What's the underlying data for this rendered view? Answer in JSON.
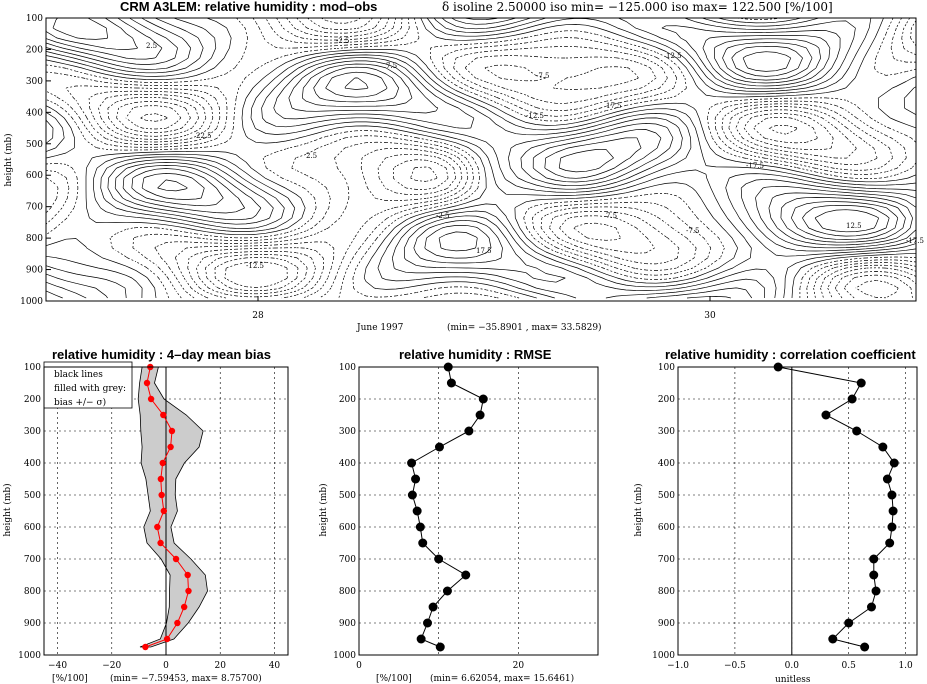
{
  "chart_data": [
    {
      "type": "heatmap",
      "panel": "contour",
      "title": "CRM A3LEM: relative humidity : mod–obs",
      "subtitle": "δ isoline 2.50000   iso min= −125.000   iso max= 122.500 [%/100]",
      "xlabel": "June 1997",
      "stats": "(min= −35.8901 , max= 33.5829)",
      "ylabel": "height (mb)",
      "ylim": [
        1000,
        100
      ],
      "x_ticks": [
        "28",
        "30"
      ],
      "y_ticks": [
        "100",
        "200",
        "300",
        "400",
        "500",
        "600",
        "700",
        "800",
        "900",
        "1000"
      ],
      "contour_labels": [
        "2.5",
        "-2.5",
        "7.5",
        "-7.5",
        "12.5",
        "-12.5",
        "17.5",
        "-17.5",
        "22.5"
      ]
    },
    {
      "type": "line",
      "panel": "bias",
      "title": "relative humidity : 4–day mean bias",
      "xlabel": "[%/100]",
      "stats": "(min=    −7.59453, max=    8.75700)",
      "ylabel": "height (mb)",
      "xlim": [
        -45,
        45
      ],
      "ylim": [
        1000,
        100
      ],
      "x_ticks": [
        -40,
        -20,
        0,
        20,
        40
      ],
      "y_ticks": [
        100,
        200,
        300,
        400,
        500,
        600,
        700,
        800,
        900,
        1000
      ],
      "legend": [
        "black lines",
        "filled with grey:",
        "bias +/− σ)"
      ],
      "grid": true,
      "pressure": [
        100,
        150,
        200,
        250,
        300,
        350,
        400,
        450,
        500,
        550,
        600,
        650,
        700,
        750,
        800,
        850,
        900,
        950,
        975
      ],
      "values": [
        -5.8,
        -7.0,
        -5.5,
        -1.0,
        2.2,
        1.7,
        -1.2,
        -1.9,
        -1.6,
        -0.8,
        -3.2,
        -2.0,
        3.7,
        8.0,
        8.3,
        6.7,
        4.2,
        0.4,
        -7.6
      ],
      "sigma_low": [
        0,
        -0.5,
        3.5,
        11.0,
        17.0,
        15.0,
        10.0,
        5.0,
        4.0,
        4.0,
        4.0,
        4.0,
        5.0,
        7.0,
        8.0,
        5.0,
        2.0,
        -1.0,
        -2.0
      ],
      "sigma_high_minus": [
        0,
        0,
        0,
        0,
        0,
        0,
        0,
        0,
        0,
        0,
        0,
        0,
        0,
        0,
        0,
        0,
        0,
        0,
        0
      ]
    },
    {
      "type": "line",
      "panel": "rmse",
      "title": "relative humidity : RMSE",
      "xlabel": "[%/100]",
      "stats": "(min=    6.62054, max=    15.6461)",
      "ylabel": "height (mb)",
      "xlim": [
        0,
        30
      ],
      "ylim": [
        1000,
        100
      ],
      "x_ticks": [
        0,
        10,
        20
      ],
      "x_tick_labels": [
        "0",
        "",
        "20"
      ],
      "y_ticks": [
        100,
        200,
        300,
        400,
        500,
        600,
        700,
        800,
        900,
        1000
      ],
      "grid": true,
      "pressure": [
        100,
        150,
        200,
        250,
        300,
        350,
        400,
        450,
        500,
        550,
        600,
        650,
        700,
        750,
        800,
        850,
        900,
        950,
        975
      ],
      "values": [
        11.2,
        11.6,
        15.6,
        15.2,
        13.8,
        10.1,
        6.6,
        7.1,
        6.7,
        7.3,
        7.7,
        8.0,
        10.0,
        13.4,
        11.1,
        9.3,
        8.6,
        7.8,
        10.2
      ]
    },
    {
      "type": "line",
      "panel": "correlation",
      "title": "relative humidity : correlation coefficient",
      "xlabel": "unitless",
      "ylabel": "height (mb)",
      "xlim": [
        -1,
        1.1
      ],
      "ylim": [
        1000,
        100
      ],
      "x_ticks": [
        -1.0,
        -0.5,
        0.0,
        0.5,
        1.0
      ],
      "x_tick_labels": [
        "−1.0",
        "−0.5",
        "0.0",
        "0.5",
        "1.0"
      ],
      "y_ticks": [
        100,
        200,
        300,
        400,
        500,
        600,
        700,
        800,
        900,
        1000
      ],
      "grid": true,
      "pressure": [
        100,
        150,
        200,
        250,
        300,
        350,
        400,
        450,
        500,
        550,
        600,
        650,
        700,
        750,
        800,
        850,
        900,
        950,
        975
      ],
      "values": [
        -0.12,
        0.61,
        0.53,
        0.3,
        0.57,
        0.8,
        0.9,
        0.84,
        0.88,
        0.89,
        0.88,
        0.86,
        0.72,
        0.72,
        0.74,
        0.7,
        0.5,
        0.36,
        0.64
      ]
    }
  ]
}
